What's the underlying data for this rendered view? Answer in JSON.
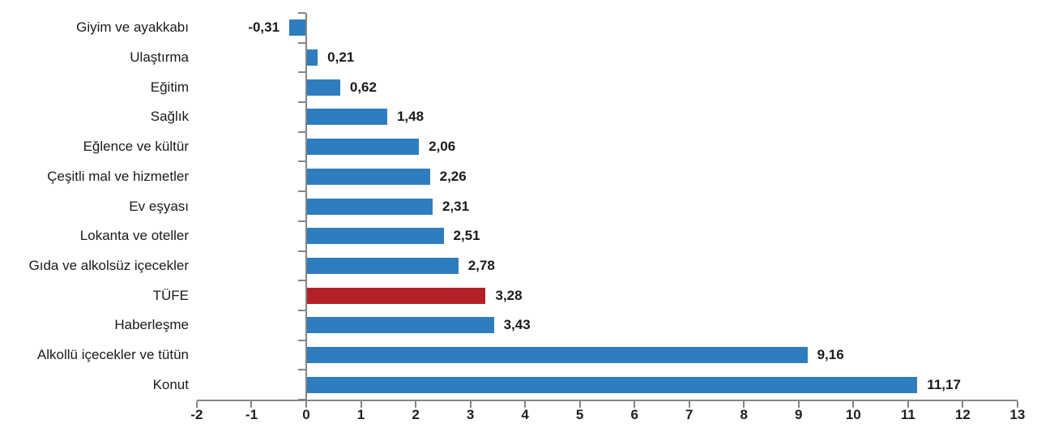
{
  "page": {
    "background": "#ffffff"
  },
  "chart_data": {
    "type": "bar",
    "orientation": "horizontal",
    "title": "",
    "xlabel": "",
    "ylabel": "",
    "grid": false,
    "legend": false,
    "xlim": [
      -2,
      13
    ],
    "x_ticks": [
      -2,
      -1,
      0,
      1,
      2,
      3,
      4,
      5,
      6,
      7,
      8,
      9,
      10,
      11,
      12,
      13
    ],
    "x_tick_labels": [
      "-2",
      "-1",
      "0",
      "1",
      "2",
      "3",
      "4",
      "5",
      "6",
      "7",
      "8",
      "9",
      "10",
      "11",
      "12",
      "13"
    ],
    "categories": [
      "Giyim ve ayakkabı",
      "Ulaştırma",
      "Eğitim",
      "Sağlık",
      "Eğlence ve kültür",
      "Çeşitli mal ve hizmetler",
      "Ev eşyası",
      "Lokanta ve oteller",
      "Gıda ve alkolsüz içecekler",
      "TÜFE",
      "Haberleşme",
      "Alkollü içecekler ve tütün",
      "Konut"
    ],
    "values": [
      -0.31,
      0.21,
      0.62,
      1.48,
      2.06,
      2.26,
      2.31,
      2.51,
      2.78,
      3.28,
      3.43,
      9.16,
      11.17
    ],
    "value_labels": [
      "-0,31",
      "0,21",
      "0,62",
      "1,48",
      "2,06",
      "2,26",
      "2,31",
      "2,51",
      "2,78",
      "3,28",
      "3,43",
      "9,16",
      "11,17"
    ],
    "highlight_index": 9,
    "highlight_category": "TÜFE",
    "bar_color": "#2e7dbf",
    "highlight_color": "#b32025",
    "axis_color": "#858585",
    "text_color": "#1a1a1a"
  }
}
